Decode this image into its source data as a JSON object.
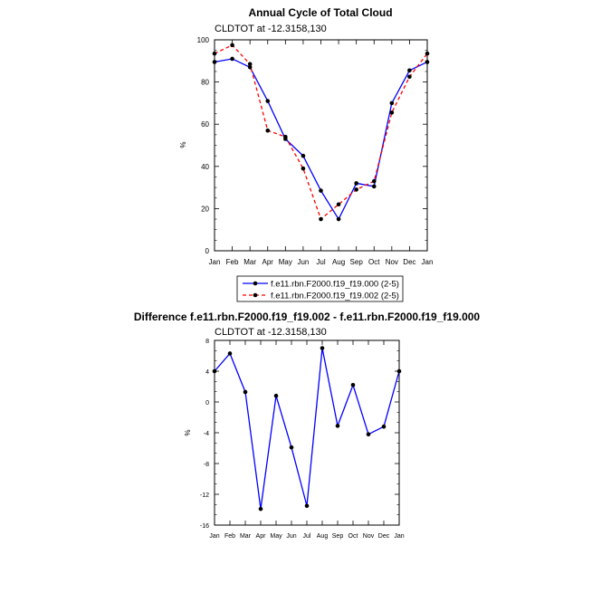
{
  "chart_data": [
    {
      "type": "line",
      "title": "Annual Cycle of Total Cloud",
      "subtitle": "CLDTOT at -12.3158,130",
      "xlabel": "",
      "ylabel": "%",
      "categories": [
        "Jan",
        "Feb",
        "Mar",
        "Apr",
        "May",
        "Jun",
        "Jul",
        "Aug",
        "Sep",
        "Oct",
        "Nov",
        "Dec",
        "Jan"
      ],
      "ylim": [
        0,
        100
      ],
      "yticks": [
        0,
        20,
        40,
        60,
        80,
        100
      ],
      "legend_position": "bottom",
      "series": [
        {
          "name": "f.e11.rbn.F2000.f19_f19.000 (2-5)",
          "color": "#0000ff",
          "dash": "solid",
          "values": [
            89.5,
            91.0,
            87.0,
            71.0,
            53.0,
            45.0,
            28.5,
            15.0,
            32.0,
            30.5,
            70.0,
            85.5,
            89.5
          ]
        },
        {
          "name": "f.e11.rbn.F2000.f19_f19.002 (2-5)",
          "color": "#ff0000",
          "dash": "dashed",
          "values": [
            93.5,
            97.5,
            88.5,
            57.0,
            54.0,
            39.0,
            15.0,
            22.0,
            29.0,
            33.0,
            65.5,
            82.5,
            93.5
          ]
        }
      ]
    },
    {
      "type": "line",
      "title": "Difference f.e11.rbn.F2000.f19_f19.002 - f.e11.rbn.F2000.f19_f19.000",
      "subtitle": "CLDTOT at -12.3158,130",
      "xlabel": "",
      "ylabel": "%",
      "categories": [
        "Jan",
        "Feb",
        "Mar",
        "Apr",
        "May",
        "Jun",
        "Jul",
        "Aug",
        "Sep",
        "Oct",
        "Nov",
        "Dec",
        "Jan"
      ],
      "ylim": [
        -16,
        8
      ],
      "yticks": [
        -16,
        -12,
        -8,
        -4,
        0,
        4,
        8
      ],
      "series": [
        {
          "name": "",
          "color": "#0000ff",
          "values": [
            4.0,
            6.3,
            1.3,
            -13.9,
            0.8,
            -5.9,
            -13.5,
            7.0,
            -3.1,
            2.2,
            -4.2,
            -3.2,
            4.0
          ]
        }
      ]
    }
  ]
}
